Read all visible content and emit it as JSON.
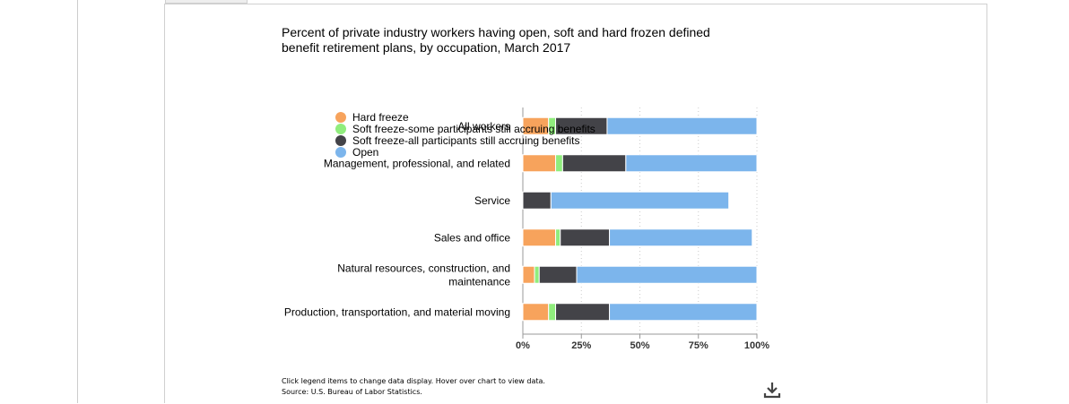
{
  "chart_data": {
    "type": "bar",
    "orientation": "horizontal",
    "stacked": "percent",
    "title": "Percent of private industry workers having open, soft and hard frozen defined benefit retirement plans, by occupation, March 2017",
    "categories": [
      "All workers",
      "Management, professional, and related",
      "Service",
      "Sales and office",
      "Natural resources, construction, and maintenance",
      "Production, transportation, and material moving"
    ],
    "series": [
      {
        "name": "Hard freeze",
        "color": "#f7a35c",
        "values": [
          11,
          14,
          0,
          14,
          5,
          11
        ]
      },
      {
        "name": "Soft freeze-some participants still accruing benefits",
        "color": "#90ed7d",
        "values": [
          3,
          3,
          0,
          2,
          2,
          3
        ]
      },
      {
        "name": "Soft freeze-all participants still accruing benefits",
        "color": "#434348",
        "values": [
          22,
          27,
          12,
          21,
          16,
          23
        ]
      },
      {
        "name": "Open",
        "color": "#7cb5ec",
        "values": [
          64,
          56,
          76,
          61,
          77,
          63
        ]
      }
    ],
    "xlim": [
      0,
      100
    ],
    "xticks": [
      "0%",
      "25%",
      "50%",
      "75%",
      "100%"
    ],
    "grid": true,
    "legend": "top-left"
  },
  "notes": {
    "line1": "Click legend items to change data display. Hover over chart to view data.",
    "line2": "Source: U.S. Bureau of Labor Statistics."
  },
  "icons": {
    "download": "download-icon"
  }
}
